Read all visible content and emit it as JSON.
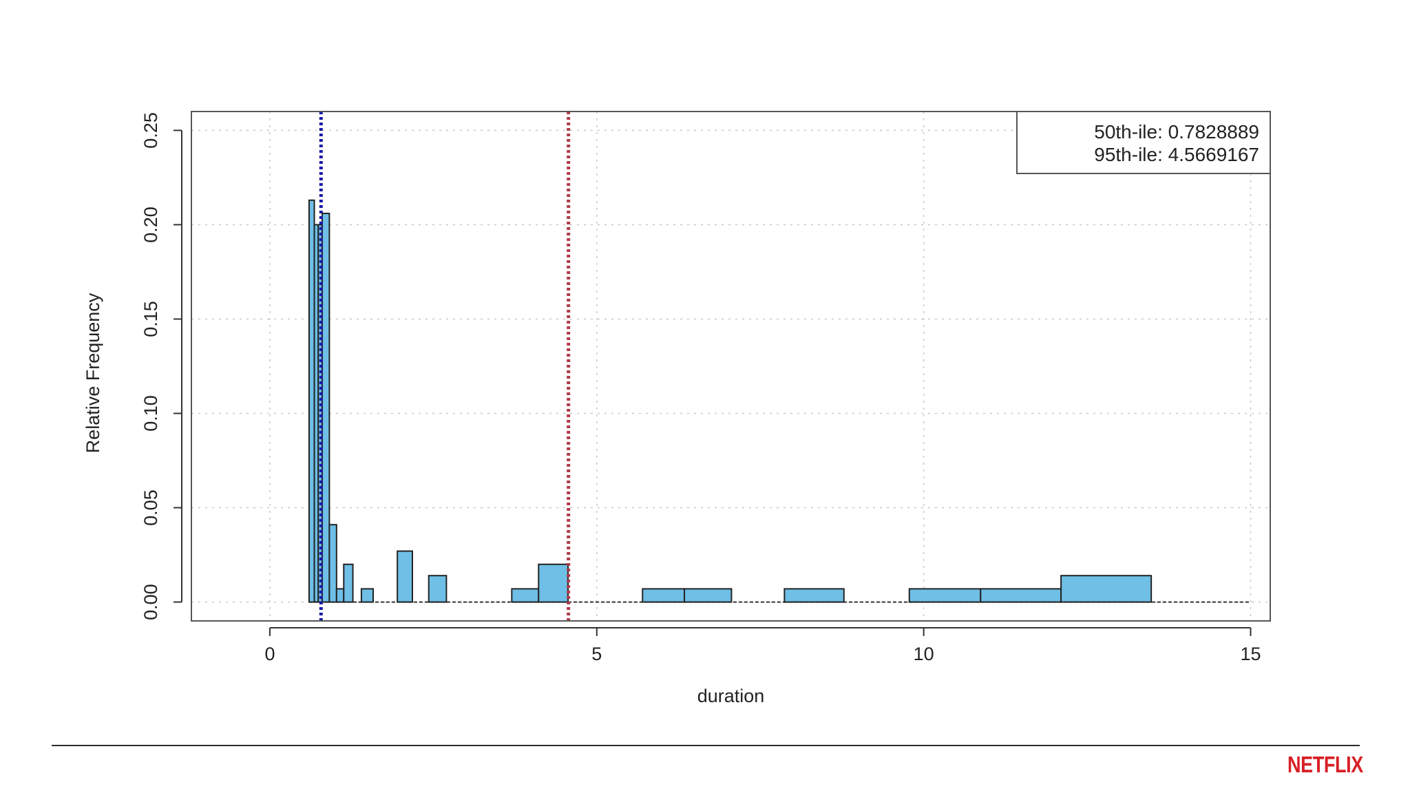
{
  "chart_data": {
    "type": "bar",
    "subtype": "histogram",
    "xlabel": "duration",
    "ylabel": "Relative Frequency",
    "xlim": [
      -1.2,
      15.3
    ],
    "ylim": [
      -0.01,
      0.26
    ],
    "xticks": [
      0,
      5,
      10,
      15
    ],
    "yticks": [
      0.0,
      0.05,
      0.1,
      0.15,
      0.2,
      0.25
    ],
    "xtick_labels": [
      "0",
      "5",
      "10",
      "15"
    ],
    "ytick_labels": [
      "0.00",
      "0.05",
      "0.10",
      "0.15",
      "0.20",
      "0.25"
    ],
    "grid": true,
    "bins": [
      {
        "x0": 0.6,
        "x1": 0.68,
        "value": 0.213
      },
      {
        "x0": 0.68,
        "x1": 0.74,
        "value": 0.2
      },
      {
        "x0": 0.74,
        "x1": 0.8,
        "value": 0.2
      },
      {
        "x0": 0.8,
        "x1": 0.91,
        "value": 0.206
      },
      {
        "x0": 0.91,
        "x1": 1.02,
        "value": 0.041
      },
      {
        "x0": 1.02,
        "x1": 1.13,
        "value": 0.007
      },
      {
        "x0": 1.13,
        "x1": 1.27,
        "value": 0.02
      },
      {
        "x0": 1.4,
        "x1": 1.58,
        "value": 0.007
      },
      {
        "x0": 1.95,
        "x1": 2.18,
        "value": 0.027
      },
      {
        "x0": 2.43,
        "x1": 2.7,
        "value": 0.014
      },
      {
        "x0": 3.7,
        "x1": 4.11,
        "value": 0.007
      },
      {
        "x0": 4.11,
        "x1": 4.56,
        "value": 0.02
      },
      {
        "x0": 5.7,
        "x1": 6.34,
        "value": 0.007
      },
      {
        "x0": 6.34,
        "x1": 7.06,
        "value": 0.007
      },
      {
        "x0": 7.87,
        "x1": 8.78,
        "value": 0.007
      },
      {
        "x0": 9.78,
        "x1": 10.87,
        "value": 0.007
      },
      {
        "x0": 10.87,
        "x1": 12.1,
        "value": 0.007
      },
      {
        "x0": 12.1,
        "x1": 13.48,
        "value": 0.014
      }
    ],
    "baseline": {
      "x0": 0.6,
      "x1": 15.0
    },
    "percentile_lines": [
      {
        "name": "50th-ile",
        "value": 0.7828889,
        "color": "#1a1aa6"
      },
      {
        "name": "95th-ile",
        "value": 4.5669167,
        "color": "#b03a48"
      }
    ],
    "legend": {
      "position": "top-right",
      "entries": [
        "50th-ile: 0.7828889",
        "95th-ile: 4.5669167"
      ]
    },
    "colors": {
      "bar_fill": "#6fbfe6",
      "bar_stroke": "#222222",
      "grid": "#c8c8c8"
    }
  },
  "brand": {
    "logo_text": "NETFLIX",
    "logo_color": "#d81f26"
  }
}
